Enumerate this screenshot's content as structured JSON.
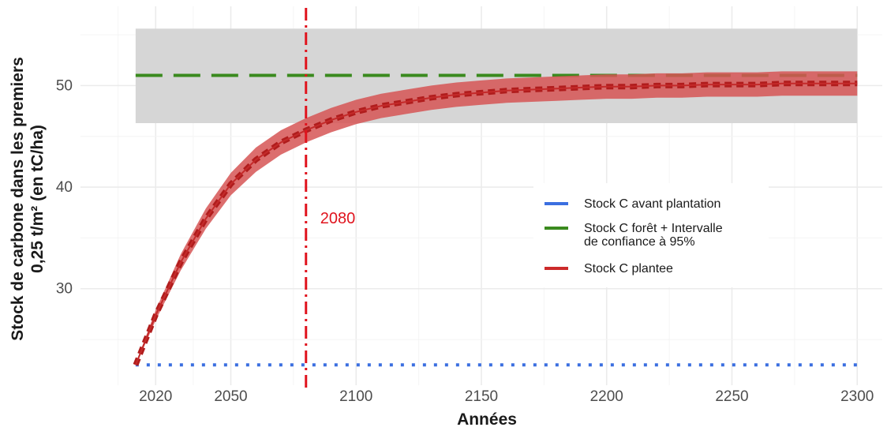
{
  "chart_data": {
    "type": "line",
    "xlabel": "Années",
    "ylabel_lines": [
      "Stock de carbone dans les premiers",
      "0,25 t/m² (en tC/ha)"
    ],
    "xlim": [
      1990,
      2310
    ],
    "ylim": [
      20.5,
      57.8
    ],
    "x_ticks": [
      2020,
      2050,
      2100,
      2150,
      2200,
      2250,
      2300
    ],
    "x_tick_labels": [
      "2020",
      "2050",
      "2100",
      "2150",
      "2200",
      "2250",
      "2300"
    ],
    "y_ticks": [
      30,
      40,
      50
    ],
    "y_tick_labels": [
      "30",
      "40",
      "50"
    ],
    "grid": true,
    "legend_position": "center-right",
    "legend": [
      {
        "lines": [
          "Stock C avant plantation"
        ],
        "color": "#3b6fe0"
      },
      {
        "lines": [
          "Stock C forêt + Intervalle",
          "de confiance à 95%"
        ],
        "color": "#3a8a1e"
      },
      {
        "lines": [
          "Stock C plantee"
        ],
        "color": "#cc2a2a"
      }
    ],
    "series": [
      {
        "id": "avant",
        "style": "dotted",
        "color": "#3b6fe0",
        "x": [
          2012,
          2300
        ],
        "y": [
          22.5,
          22.5
        ]
      },
      {
        "id": "foret",
        "style": "dashed",
        "color": "#3a8a1e",
        "x": [
          2012,
          2300
        ],
        "y": [
          51.0,
          51.0
        ],
        "ci": [
          46.3,
          55.6
        ]
      },
      {
        "id": "plantee",
        "style": "band",
        "color": "#cc2a2a",
        "x": [
          2012,
          2020,
          2030,
          2040,
          2050,
          2060,
          2070,
          2080,
          2090,
          2100,
          2110,
          2120,
          2130,
          2140,
          2150,
          2160,
          2170,
          2180,
          2190,
          2200,
          2210,
          2220,
          2230,
          2240,
          2250,
          2260,
          2270,
          2280,
          2290,
          2300
        ],
        "y": [
          22.5,
          27.4,
          32.6,
          36.9,
          40.3,
          42.7,
          44.4,
          45.6,
          46.6,
          47.4,
          48.0,
          48.4,
          48.8,
          49.1,
          49.3,
          49.5,
          49.6,
          49.7,
          49.8,
          49.9,
          49.9,
          50.0,
          50.0,
          50.1,
          50.1,
          50.1,
          50.2,
          50.2,
          50.2,
          50.2
        ],
        "half_width": [
          0.1,
          0.5,
          0.8,
          1.0,
          1.1,
          1.2,
          1.2,
          1.2,
          1.2,
          1.2,
          1.2,
          1.2,
          1.2,
          1.2,
          1.2,
          1.2,
          1.2,
          1.2,
          1.2,
          1.2,
          1.2,
          1.2,
          1.2,
          1.2,
          1.2,
          1.2,
          1.2,
          1.2,
          1.2,
          1.2
        ]
      }
    ],
    "vline": {
      "x": 2080,
      "label": "2080",
      "color": "#e0141e"
    }
  }
}
